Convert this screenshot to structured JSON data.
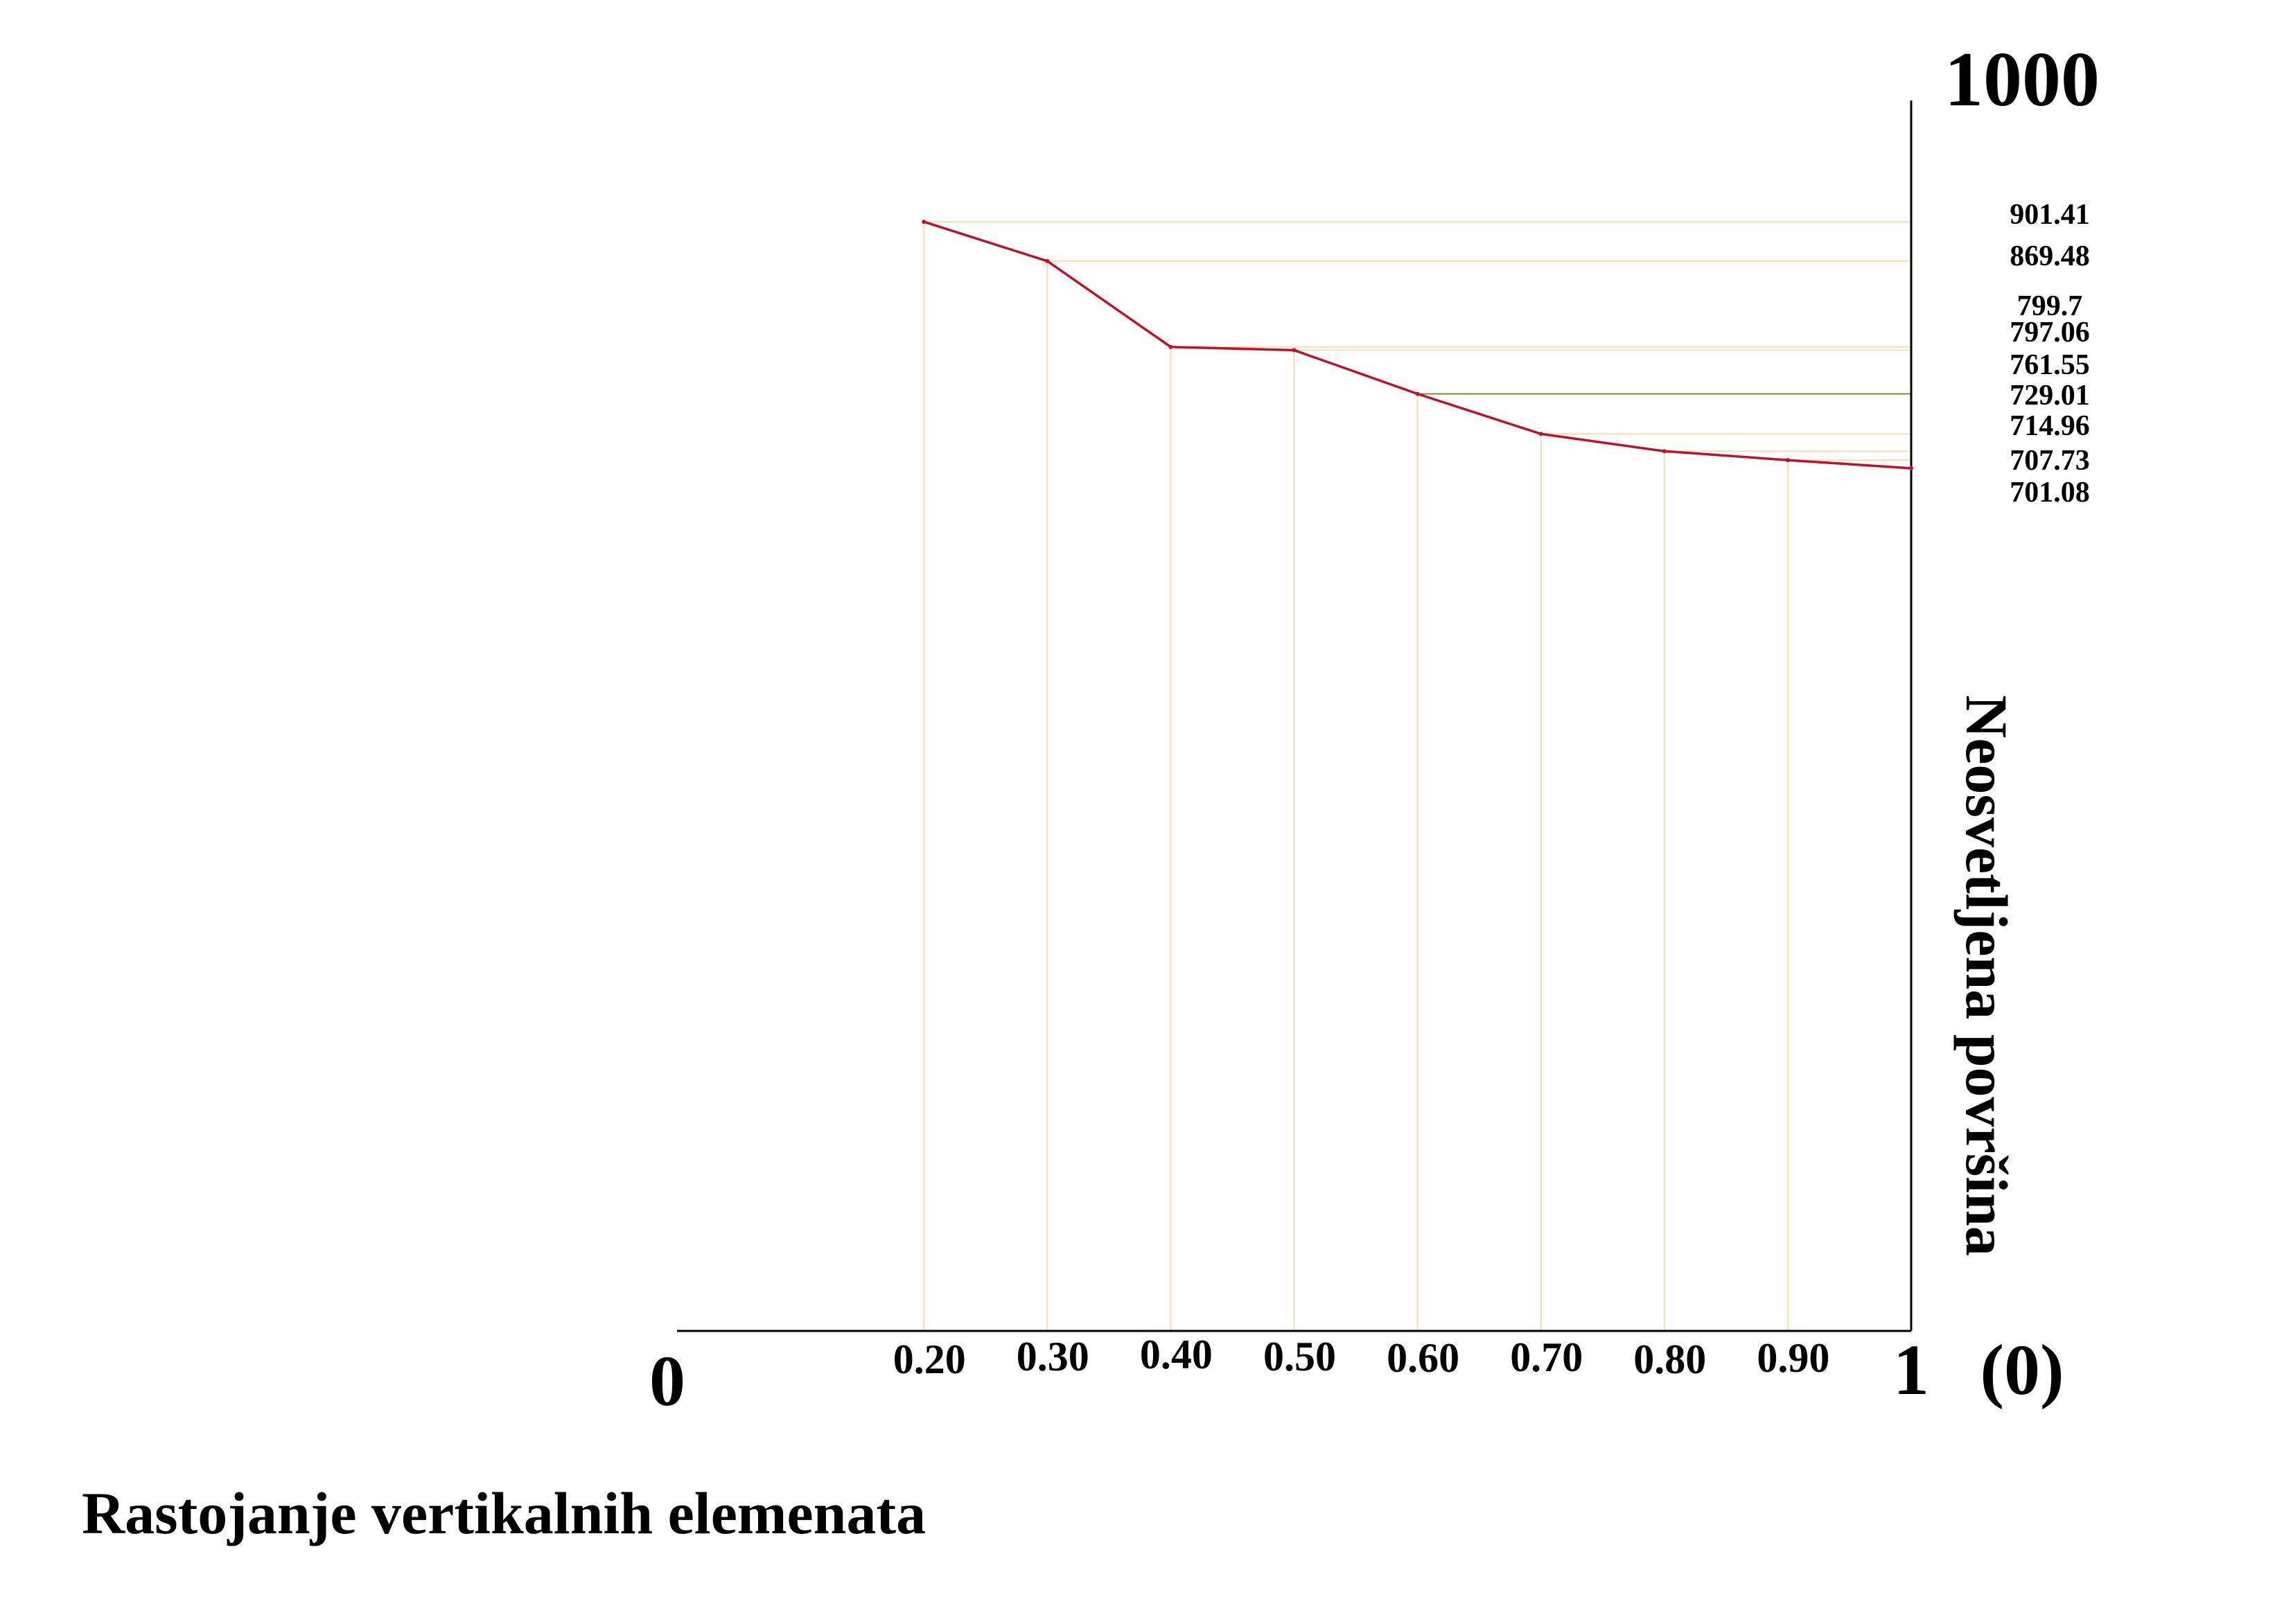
{
  "chart_data": {
    "type": "line",
    "title": "",
    "xlabel": "Rastojanje vertikalnih elemenata",
    "ylabel": "Neosvetljena površina",
    "x_origin_label": "0",
    "x_end_label": "1",
    "x_end_extra_label": "(0)",
    "y_top_label": "1000",
    "xlim": [
      0,
      1
    ],
    "ylim": [
      0,
      1000
    ],
    "x": [
      0.2,
      0.3,
      0.4,
      0.5,
      0.6,
      0.7,
      0.8,
      0.9,
      1.0
    ],
    "x_tick_labels": [
      "0.20",
      "0.30",
      "0.40",
      "0.50",
      "0.60",
      "0.70",
      "0.80",
      "0.90"
    ],
    "series": [
      {
        "values": [
          901.41,
          869.48,
          799.7,
          797.06,
          761.55,
          729.01,
          714.96,
          707.73,
          701.08
        ]
      }
    ],
    "y_value_labels": [
      "901.41",
      "869.48",
      "799.7",
      "797.06",
      "761.55",
      "729.01",
      "714.96",
      "707.73",
      "701.08"
    ],
    "colors": {
      "line": "#c0102a",
      "guide": "#f3dfb0",
      "guide_highlight": "#7a8a3a",
      "axis": "#000000"
    }
  }
}
